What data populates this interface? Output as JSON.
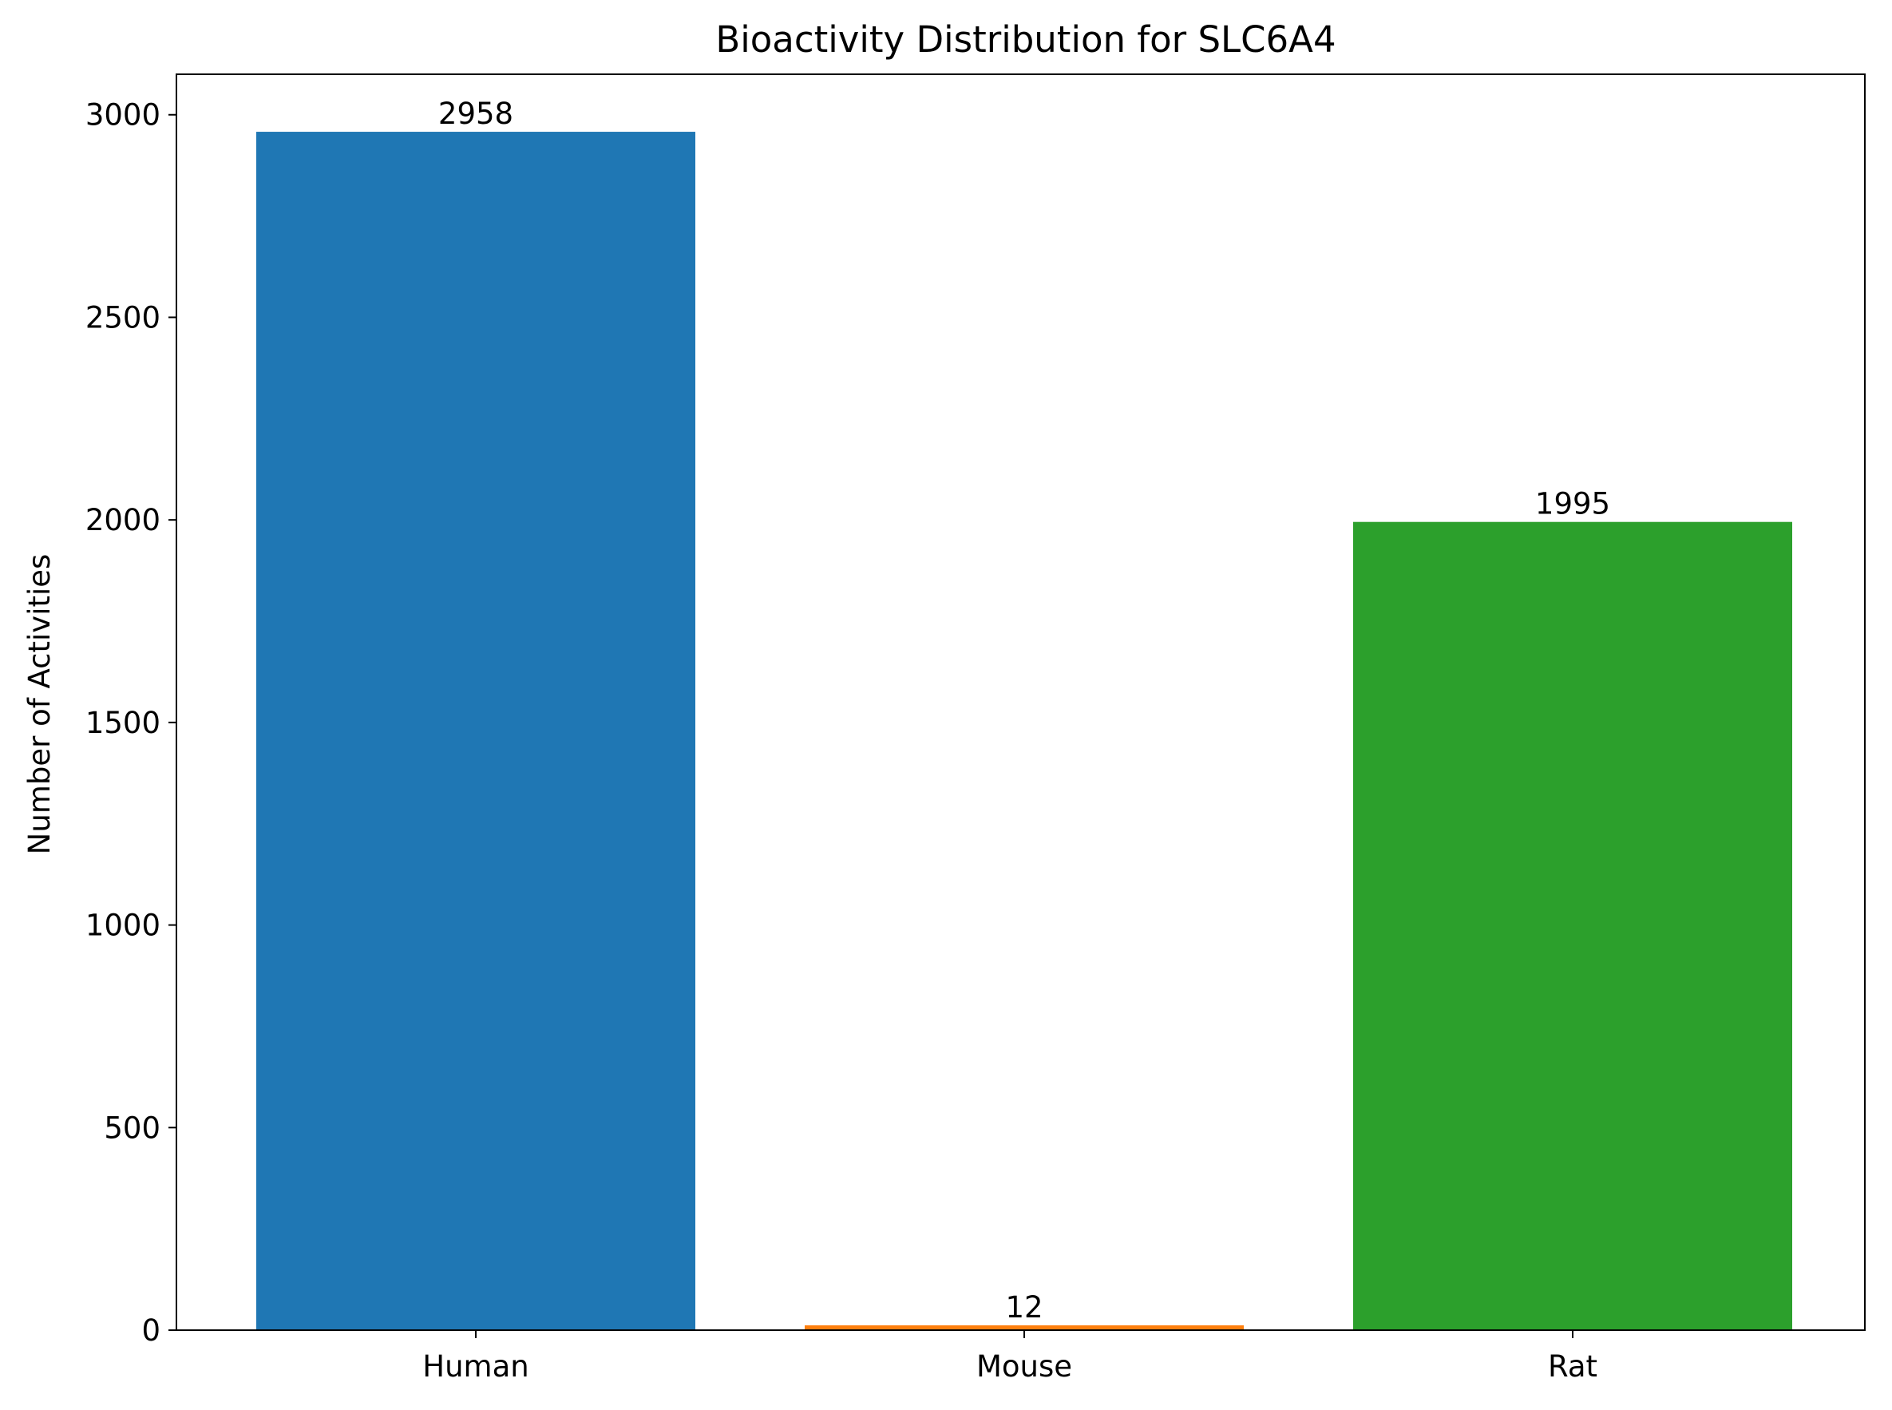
{
  "chart_data": {
    "type": "bar",
    "title": "Bioactivity Distribution for SLC6A4",
    "xlabel": "",
    "ylabel": "Number of Activities",
    "categories": [
      "Human",
      "Mouse",
      "Rat"
    ],
    "values": [
      2958,
      12,
      1995
    ],
    "data_labels": [
      "2958",
      "12",
      "1995"
    ],
    "colors": [
      "#1f77b4",
      "#ff7f0e",
      "#2ca02c"
    ],
    "ylim": [
      0,
      3100
    ],
    "yticks": [
      0,
      500,
      1000,
      1500,
      2000,
      2500,
      3000
    ],
    "grid": false,
    "legend": "none"
  }
}
